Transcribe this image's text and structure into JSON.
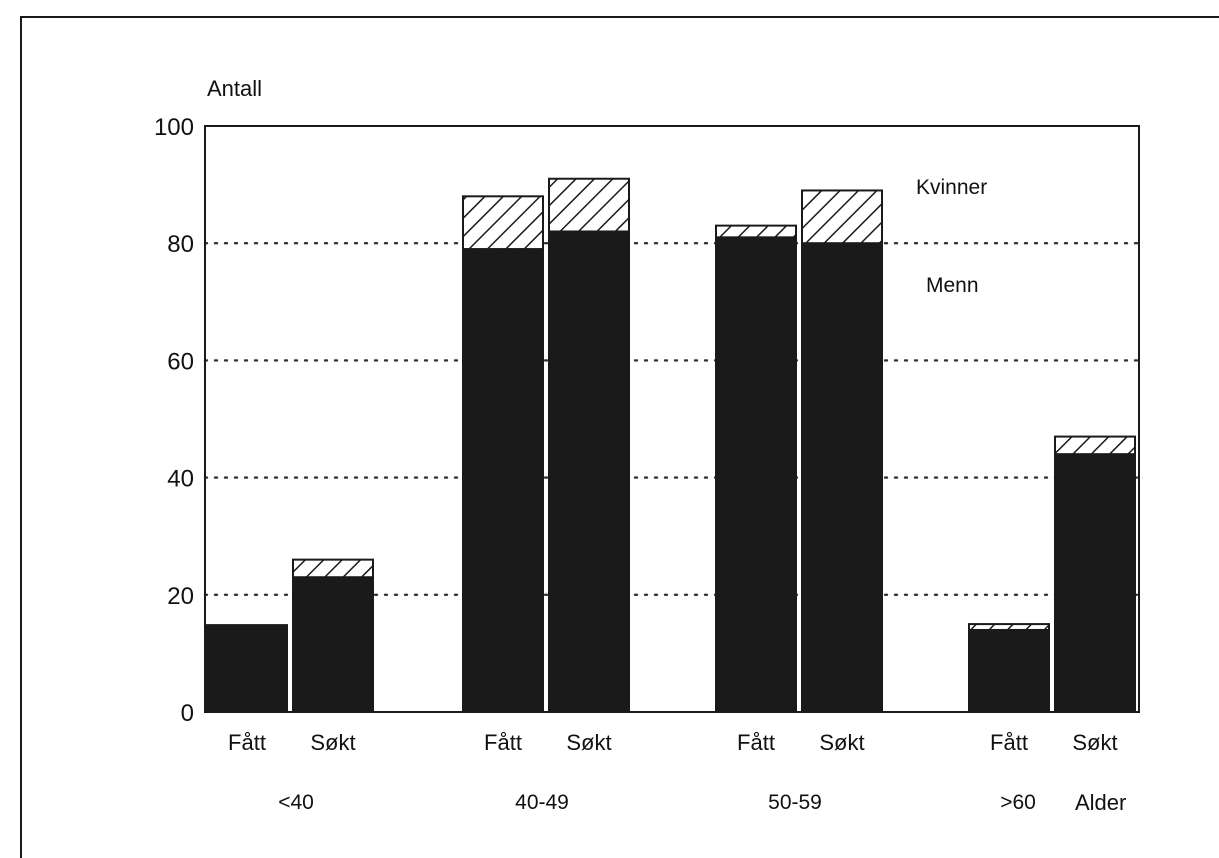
{
  "chart_data": {
    "type": "bar",
    "stacked": true,
    "ylabel": "Antall",
    "xlabel": "Alder",
    "ylim": [
      0,
      100
    ],
    "yticks": [
      0,
      20,
      40,
      60,
      80,
      100
    ],
    "grid": "dotted horizontal",
    "groups": [
      "<40",
      "40-49",
      "50-59",
      ">60"
    ],
    "bar_labels": [
      "Fått",
      "Søkt"
    ],
    "series": [
      {
        "name": "Menn",
        "fill": "solid",
        "values": [
          [
            15,
            23
          ],
          [
            79,
            82
          ],
          [
            81,
            80
          ],
          [
            14,
            44
          ]
        ]
      },
      {
        "name": "Kvinner",
        "fill": "hatched",
        "values": [
          [
            0,
            3
          ],
          [
            9,
            9
          ],
          [
            2,
            9
          ],
          [
            1,
            3
          ]
        ]
      }
    ],
    "colors": {
      "bar": "#1a1a1a",
      "grid": "#333333",
      "background": "#ffffff"
    }
  }
}
